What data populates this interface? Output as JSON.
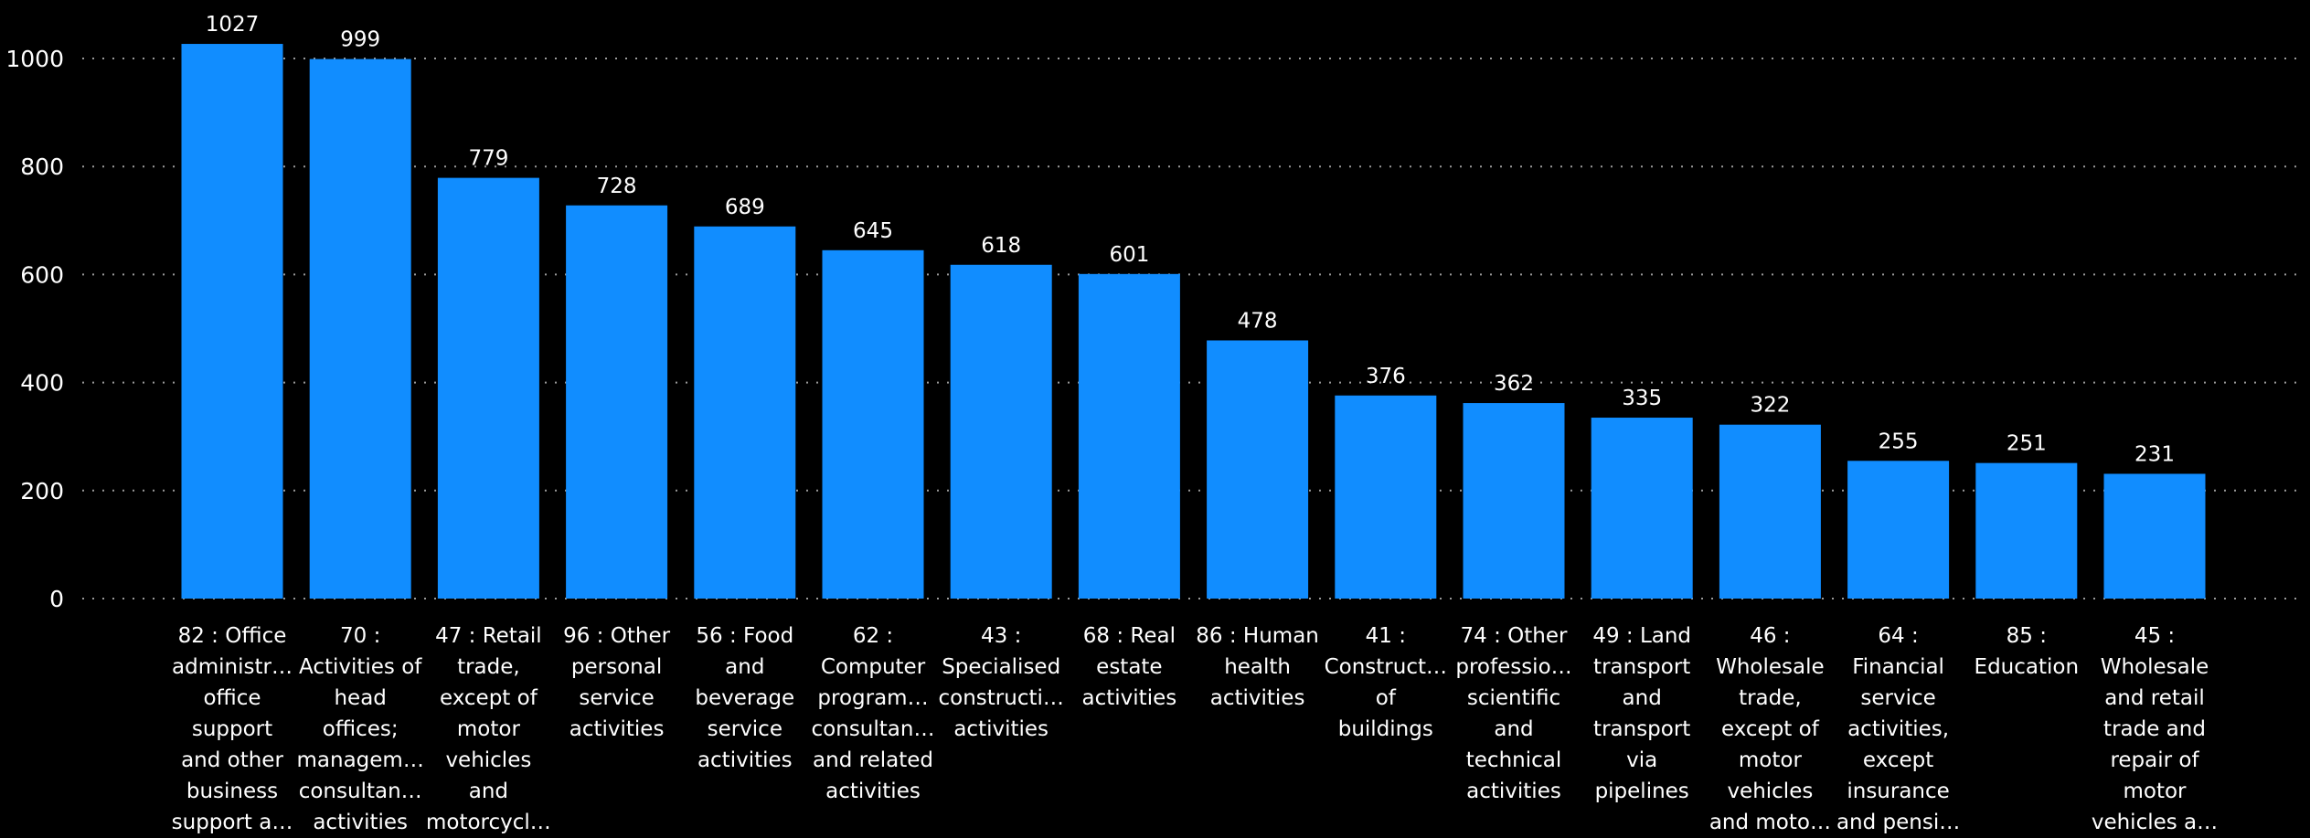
{
  "chart_data": {
    "type": "bar",
    "title": "",
    "xlabel": "",
    "ylabel": "",
    "ylim": [
      0,
      1000
    ],
    "yticks": [
      0,
      200,
      400,
      600,
      800,
      1000
    ],
    "grid": true,
    "bar_color": "#118DFF",
    "categories": [
      [
        "82 : Office",
        "administr…",
        "office",
        "support",
        "and other",
        "business",
        "support a…"
      ],
      [
        "70 :",
        "Activities of",
        "head",
        "offices;",
        "managem…",
        "consultan…",
        "activities"
      ],
      [
        "47 : Retail",
        "trade,",
        "except of",
        "motor",
        "vehicles",
        "and",
        "motorcycl…"
      ],
      [
        "96 : Other",
        "personal",
        "service",
        "activities"
      ],
      [
        "56 : Food",
        "and",
        "beverage",
        "service",
        "activities"
      ],
      [
        "62 :",
        "Computer",
        "program…",
        "consultan…",
        "and related",
        "activities"
      ],
      [
        "43 :",
        "Specialised",
        "constructi…",
        "activities"
      ],
      [
        "68 : Real",
        "estate",
        "activities"
      ],
      [
        "86 : Human",
        "health",
        "activities"
      ],
      [
        "41 :",
        "Construct…",
        "of",
        "buildings"
      ],
      [
        "74 : Other",
        "professio…",
        "scientific",
        "and",
        "technical",
        "activities"
      ],
      [
        "49 : Land",
        "transport",
        "and",
        "transport",
        "via",
        "pipelines"
      ],
      [
        "46 :",
        "Wholesale",
        "trade,",
        "except of",
        "motor",
        "vehicles",
        "and moto…"
      ],
      [
        "64 :",
        "Financial",
        "service",
        "activities,",
        "except",
        "insurance",
        "and pensi…"
      ],
      [
        "85 :",
        "Education"
      ],
      [
        "45 :",
        "Wholesale",
        "and retail",
        "trade and",
        "repair of",
        "motor",
        "vehicles a…"
      ]
    ],
    "values": [
      1027,
      999,
      779,
      728,
      689,
      645,
      618,
      601,
      478,
      376,
      362,
      335,
      322,
      255,
      251,
      231
    ]
  }
}
